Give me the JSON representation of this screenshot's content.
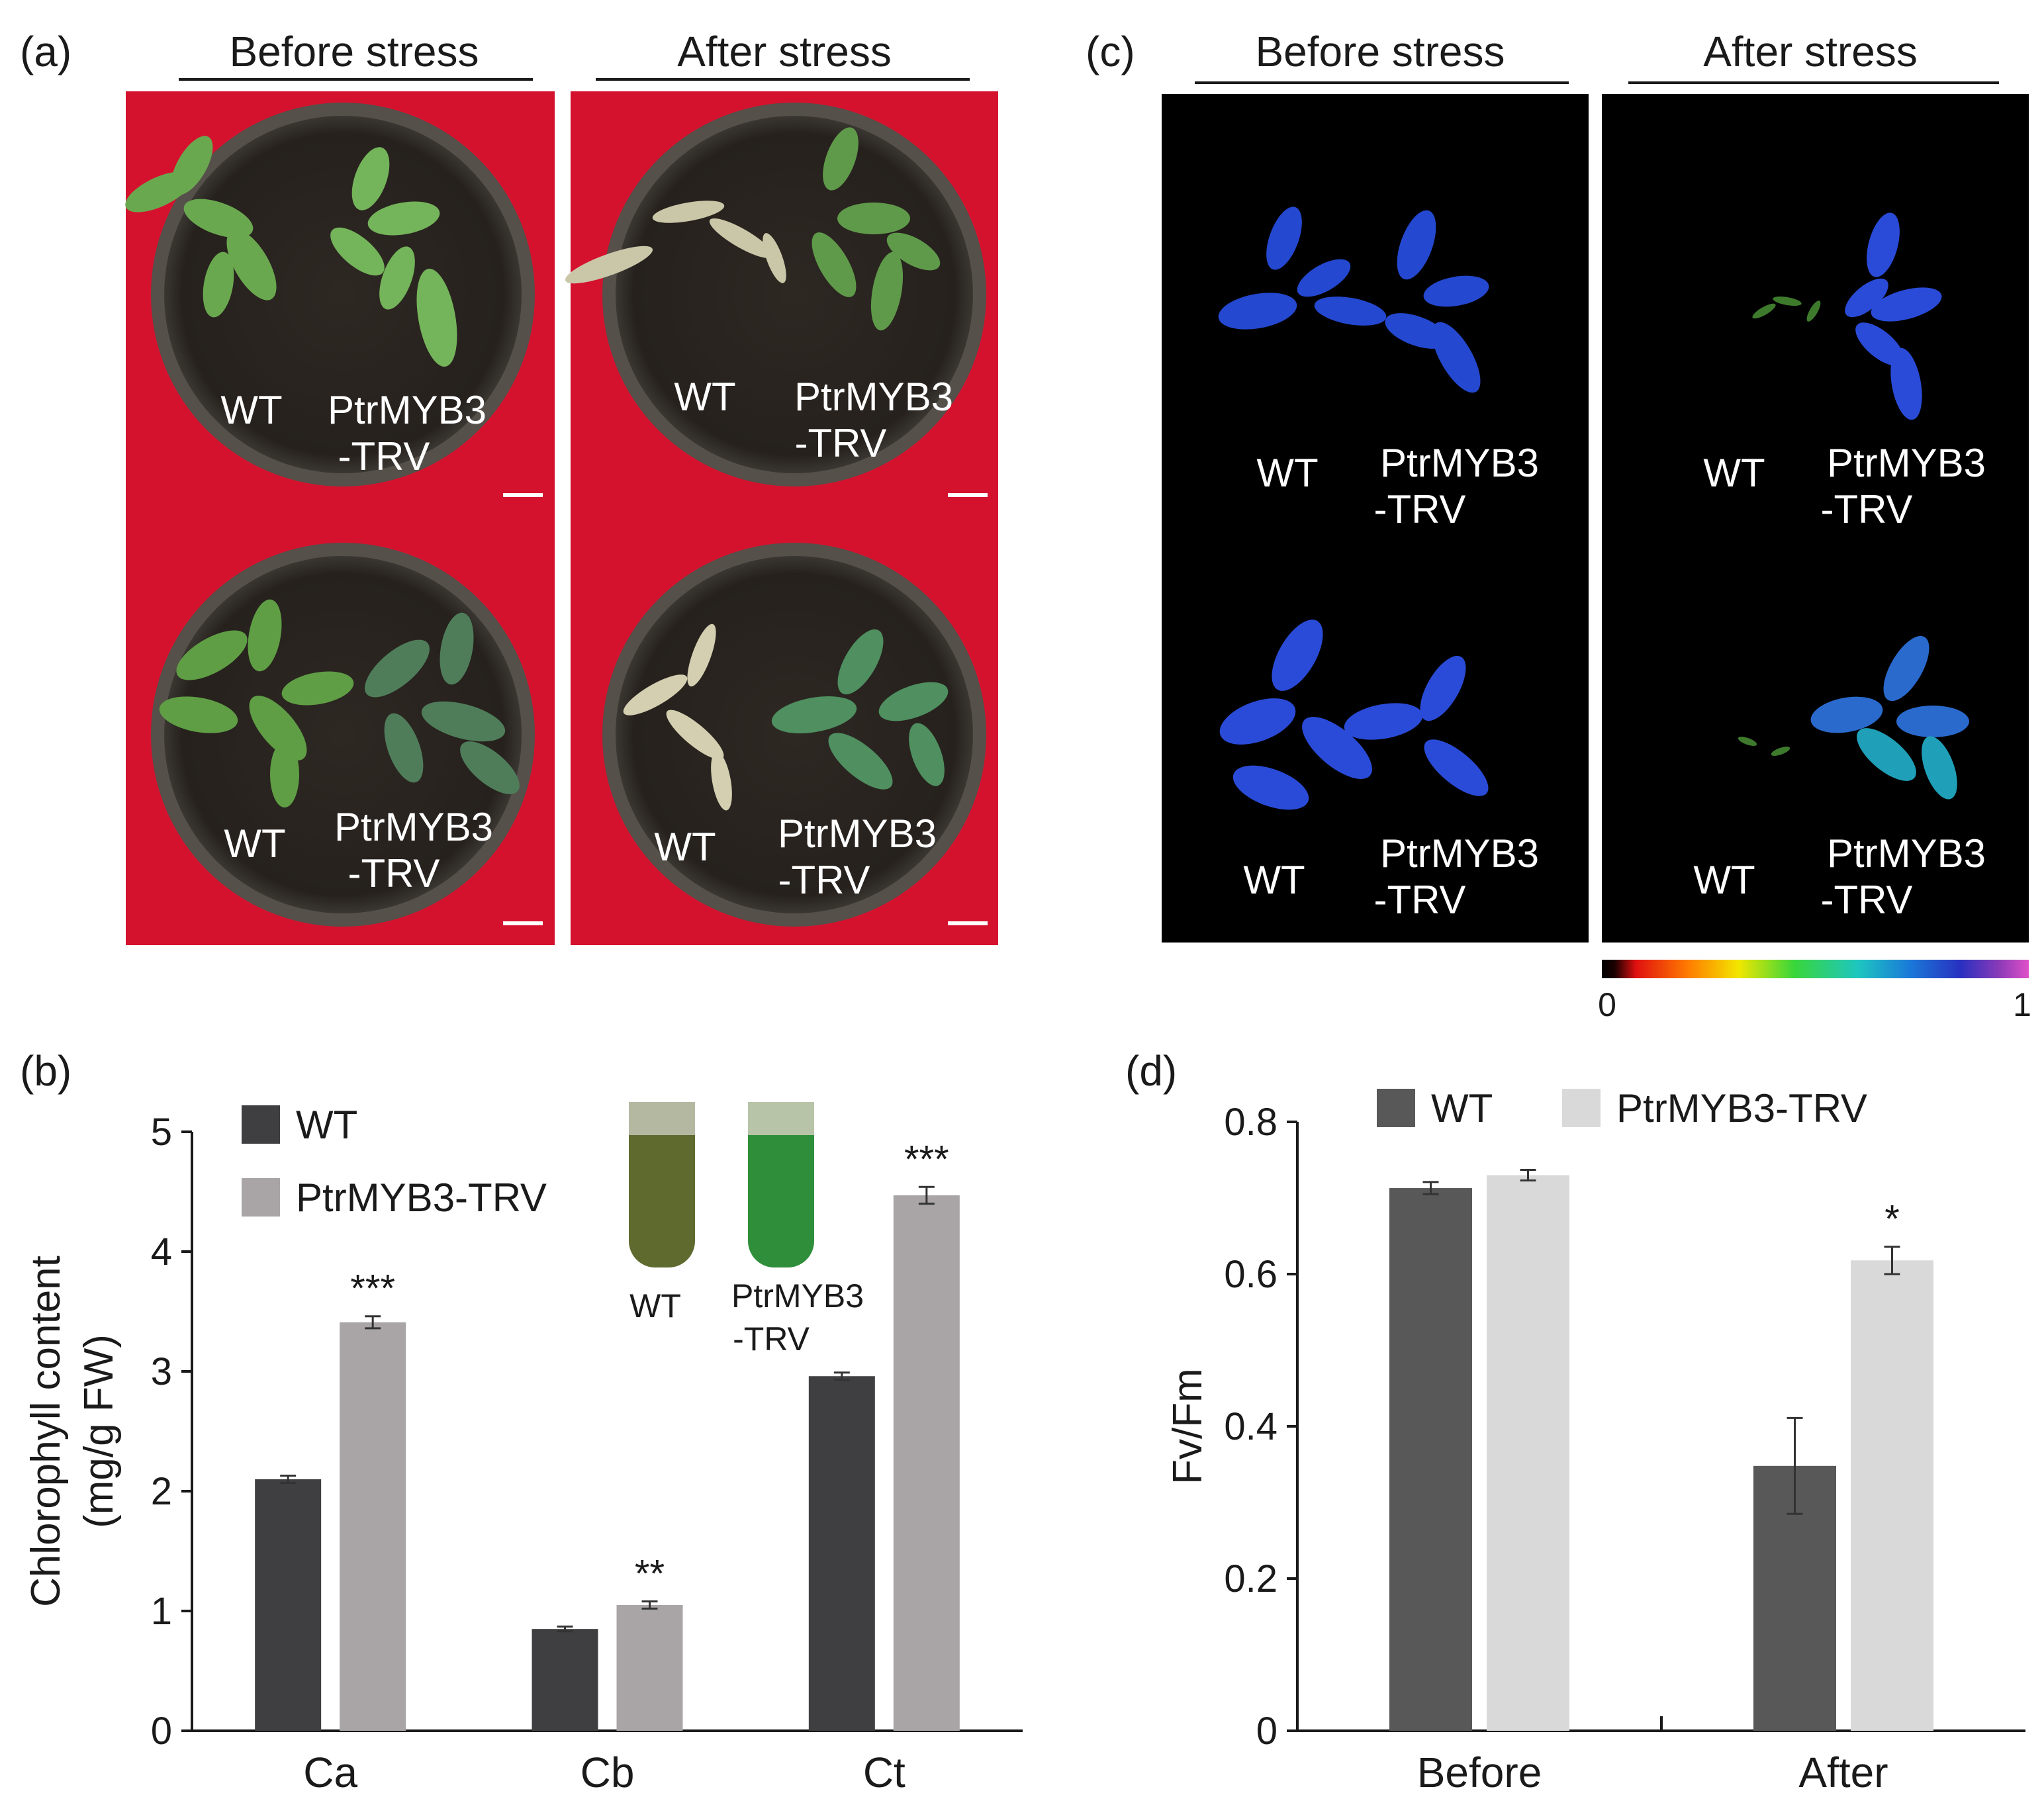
{
  "panels": {
    "a": {
      "label": "(a)",
      "before_title": "Before stress",
      "after_title": "After stress",
      "pots": [
        {
          "wt": "WT",
          "trv1": "PtrMYB3",
          "trv2": "-TRV"
        },
        {
          "wt": "WT",
          "trv1": "PtrMYB3",
          "trv2": "-TRV"
        },
        {
          "wt": "WT",
          "trv1": "PtrMYB3",
          "trv2": "-TRV"
        },
        {
          "wt": "WT",
          "trv1": "PtrMYB3",
          "trv2": "-TRV"
        }
      ],
      "colors": {
        "background": "#d4122e",
        "soil": "#2b2520",
        "plant": "#6aa84f"
      }
    },
    "b": {
      "label": "(b)",
      "inset_wt": "WT",
      "inset_trv1": "PtrMYB3",
      "inset_trv2": "-TRV"
    },
    "c": {
      "label": "(c)",
      "before_title": "Before stress",
      "after_title": "After stress",
      "images": [
        {
          "wt": "WT",
          "trv1": "PtrMYB3",
          "trv2": "-TRV"
        },
        {
          "wt": "WT",
          "trv1": "PtrMYB3",
          "trv2": "-TRV"
        },
        {
          "wt": "WT",
          "trv1": "PtrMYB3",
          "trv2": "-TRV"
        },
        {
          "wt": "WT",
          "trv1": "PtrMYB3",
          "trv2": "-TRV"
        }
      ],
      "colorbar_min": "0",
      "colorbar_max": "1"
    },
    "d": {
      "label": "(d)"
    }
  },
  "chart_data": [
    {
      "type": "bar",
      "panel": "b",
      "categories": [
        "Ca",
        "Cb",
        "Ct"
      ],
      "ylabel_line1": "Chlorophyll content",
      "ylabel_line2": "(mg/g FW)",
      "ylim": [
        0,
        5
      ],
      "yticks": [
        "0",
        "1",
        "2",
        "3",
        "4",
        "5"
      ],
      "series": [
        {
          "name": "WT",
          "color": "#3f3f42",
          "values": [
            2.1,
            0.85,
            2.96
          ],
          "errors": [
            0.03,
            0.02,
            0.03
          ]
        },
        {
          "name": "PtrMYB3-TRV",
          "color": "#a9a5a6",
          "values": [
            3.41,
            1.05,
            4.47
          ],
          "errors": [
            0.05,
            0.03,
            0.07
          ]
        }
      ],
      "significance": [
        "***",
        "**",
        "***"
      ]
    },
    {
      "type": "bar",
      "panel": "d",
      "categories": [
        "Before",
        "After"
      ],
      "ylabel": "Fv/Fm",
      "ylim": [
        0,
        0.8
      ],
      "yticks": [
        "0",
        "0.2",
        "0.4",
        "0.6",
        "0.8"
      ],
      "series": [
        {
          "name": "WT",
          "color": "#585858",
          "values": [
            0.713,
            0.348
          ],
          "errors": [
            0.008,
            0.063
          ]
        },
        {
          "name": "PtrMYB3-TRV",
          "color": "#d9d9d9",
          "values": [
            0.73,
            0.618
          ],
          "errors": [
            0.007,
            0.018
          ]
        }
      ],
      "significance": [
        "",
        "*"
      ]
    }
  ]
}
